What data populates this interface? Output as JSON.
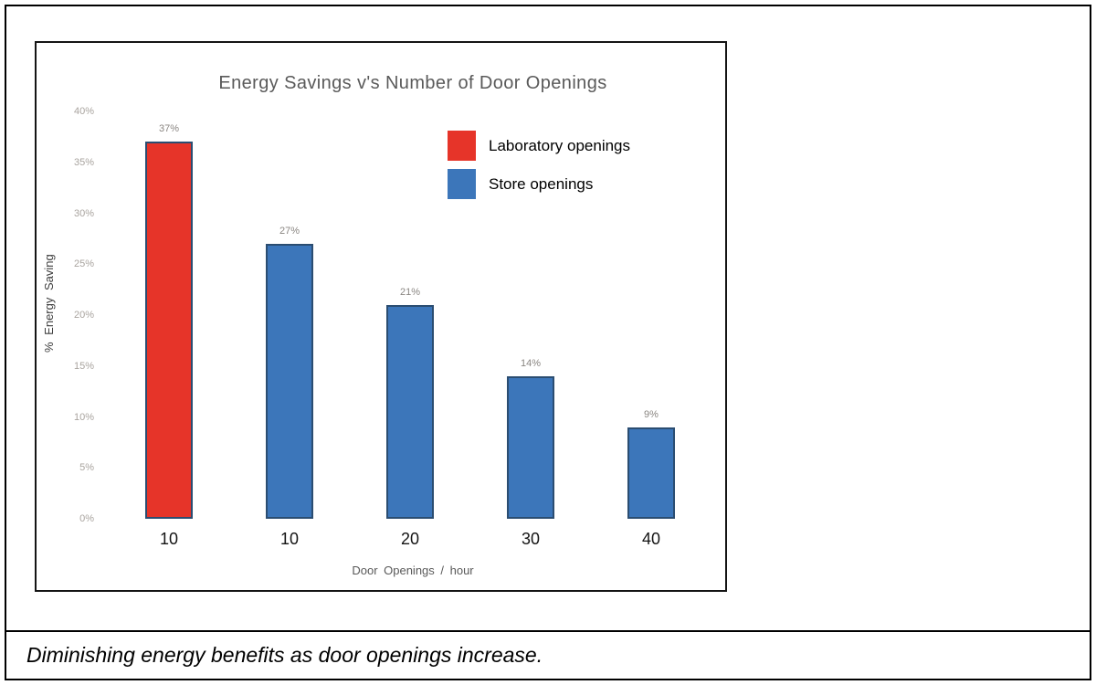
{
  "figure": {
    "caption": "Diminishing energy benefits as door openings increase."
  },
  "chart_data": {
    "type": "bar",
    "title": "Energy Savings v's Number of Door Openings",
    "xlabel": "Door Openings / hour",
    "ylabel": "% Energy Saving",
    "categories": [
      "10",
      "10",
      "20",
      "30",
      "40"
    ],
    "values": [
      37,
      27,
      21,
      14,
      9
    ],
    "bar_labels": [
      "37%",
      "27%",
      "21%",
      "14%",
      "9%"
    ],
    "bar_colors": [
      "#e63429",
      "#3c76ba",
      "#3c76ba",
      "#3c76ba",
      "#3c76ba"
    ],
    "bar_border_color": "#2b4d71",
    "ylim": [
      0,
      40
    ],
    "ytick_step": 5,
    "yticks": [
      "0%",
      "5%",
      "10%",
      "15%",
      "20%",
      "25%",
      "30%",
      "35%",
      "40%"
    ],
    "grid": false,
    "legend": {
      "position": "top-right",
      "entries": [
        {
          "label": "Laboratory openings",
          "color": "#e63429"
        },
        {
          "label": "Store openings",
          "color": "#3c76ba"
        }
      ]
    }
  }
}
